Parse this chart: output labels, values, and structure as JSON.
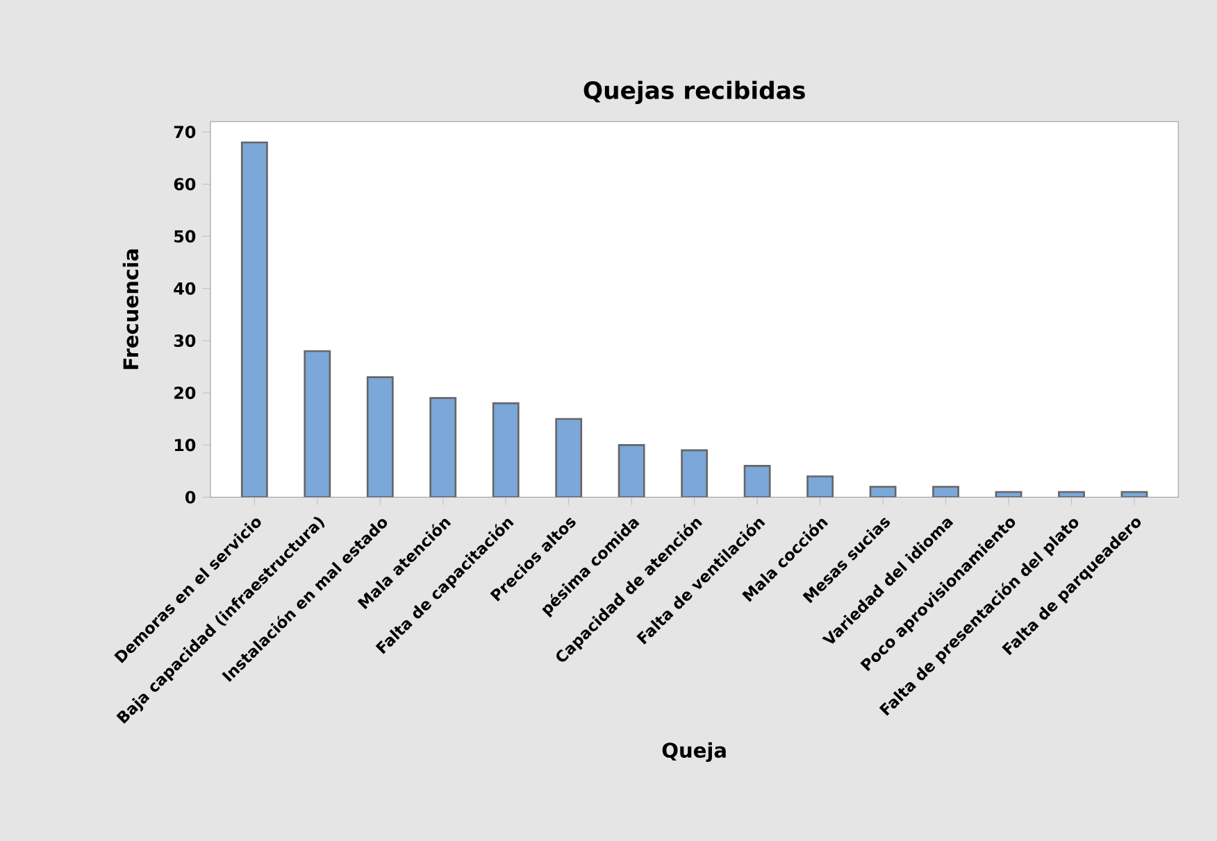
{
  "chart_data": {
    "type": "bar",
    "title": "Quejas recibidas",
    "xlabel": "Queja",
    "ylabel": "Frecuencia",
    "categories": [
      "Demoras en el servicio",
      "Baja capacidad (infraestructura)",
      "Instalación en mal estado",
      "Mala atención",
      "Falta de capacitación",
      "Precios altos",
      "pésima comida",
      "Capacidad de atención",
      "Falta de ventilación",
      "Mala cocción",
      "Mesas sucias",
      "Variedad del idioma",
      "Poco aprovisionamiento",
      "Falta de presentación del plato",
      "Falta de parqueadero"
    ],
    "values": [
      68,
      28,
      23,
      19,
      18,
      15,
      10,
      9,
      6,
      4,
      2,
      2,
      1,
      1,
      1
    ],
    "color": "#7ba7d9",
    "ylim": [
      0,
      72
    ],
    "yticks": [
      0,
      10,
      20,
      30,
      40,
      50,
      60,
      70
    ],
    "grid": false
  }
}
